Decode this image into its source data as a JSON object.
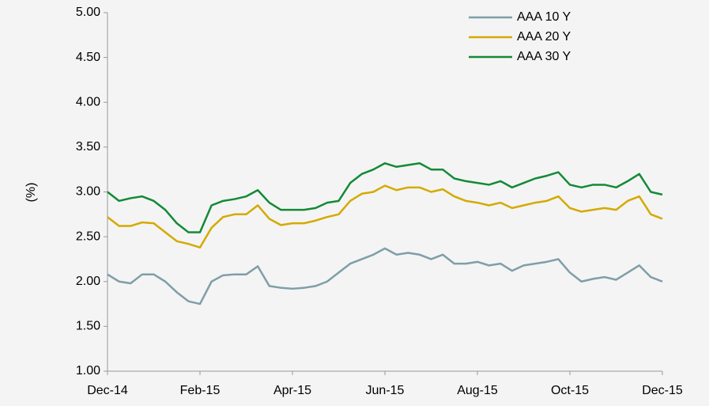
{
  "chart_data": {
    "type": "line",
    "y_label": "(%)",
    "categories": [
      "Dec-14",
      null,
      null,
      null,
      null,
      null,
      null,
      null,
      "Feb-15",
      null,
      null,
      null,
      null,
      null,
      null,
      null,
      "Apr-15",
      null,
      null,
      null,
      null,
      null,
      null,
      null,
      "Jun-15",
      null,
      null,
      null,
      null,
      null,
      null,
      null,
      "Aug-15",
      null,
      null,
      null,
      null,
      null,
      null,
      null,
      "Oct-15",
      null,
      null,
      null,
      null,
      null,
      null,
      null,
      "Dec-15"
    ],
    "series": [
      {
        "name": "AAA 10 Y",
        "color": "#7f9ea8",
        "values": [
          2.08,
          2.0,
          1.98,
          2.08,
          2.08,
          2.0,
          1.88,
          1.78,
          1.75,
          2.0,
          2.07,
          2.08,
          2.08,
          2.17,
          1.95,
          1.93,
          1.92,
          1.93,
          1.95,
          2.0,
          2.1,
          2.2,
          2.25,
          2.3,
          2.37,
          2.3,
          2.32,
          2.3,
          2.25,
          2.3,
          2.2,
          2.2,
          2.22,
          2.18,
          2.2,
          2.12,
          2.18,
          2.2,
          2.22,
          2.25,
          2.1,
          2.0,
          2.03,
          2.05,
          2.02,
          2.1,
          2.18,
          2.05,
          2.0
        ]
      },
      {
        "name": "AAA 20 Y",
        "color": "#d4aa00",
        "values": [
          2.72,
          2.62,
          2.62,
          2.66,
          2.65,
          2.55,
          2.45,
          2.42,
          2.38,
          2.6,
          2.72,
          2.75,
          2.75,
          2.85,
          2.7,
          2.63,
          2.65,
          2.65,
          2.68,
          2.72,
          2.75,
          2.9,
          2.98,
          3.0,
          3.07,
          3.02,
          3.05,
          3.05,
          3.0,
          3.03,
          2.95,
          2.9,
          2.88,
          2.85,
          2.88,
          2.82,
          2.85,
          2.88,
          2.9,
          2.95,
          2.82,
          2.78,
          2.8,
          2.82,
          2.8,
          2.9,
          2.95,
          2.75,
          2.7
        ]
      },
      {
        "name": "AAA 30 Y",
        "color": "#138a36",
        "values": [
          3.0,
          2.9,
          2.93,
          2.95,
          2.9,
          2.8,
          2.65,
          2.55,
          2.55,
          2.85,
          2.9,
          2.92,
          2.95,
          3.02,
          2.88,
          2.8,
          2.8,
          2.8,
          2.82,
          2.88,
          2.9,
          3.1,
          3.2,
          3.25,
          3.32,
          3.28,
          3.3,
          3.32,
          3.25,
          3.25,
          3.15,
          3.12,
          3.1,
          3.08,
          3.12,
          3.05,
          3.1,
          3.15,
          3.18,
          3.22,
          3.08,
          3.05,
          3.08,
          3.08,
          3.05,
          3.12,
          3.2,
          3.0,
          2.97
        ]
      }
    ],
    "ylim": [
      1,
      5
    ],
    "yticks": [
      {
        "value": 1,
        "label": "1.00"
      },
      {
        "value": 1.5,
        "label": "1.50"
      },
      {
        "value": 2,
        "label": "2.00"
      },
      {
        "value": 2.5,
        "label": "2.50"
      },
      {
        "value": 3,
        "label": "3.00"
      },
      {
        "value": 3.5,
        "label": "3.50"
      },
      {
        "value": 4,
        "label": "4.00"
      },
      {
        "value": 4.5,
        "label": "4.50"
      },
      {
        "value": 5,
        "label": "5.00"
      }
    ],
    "grid": false,
    "legend": "top-right"
  }
}
